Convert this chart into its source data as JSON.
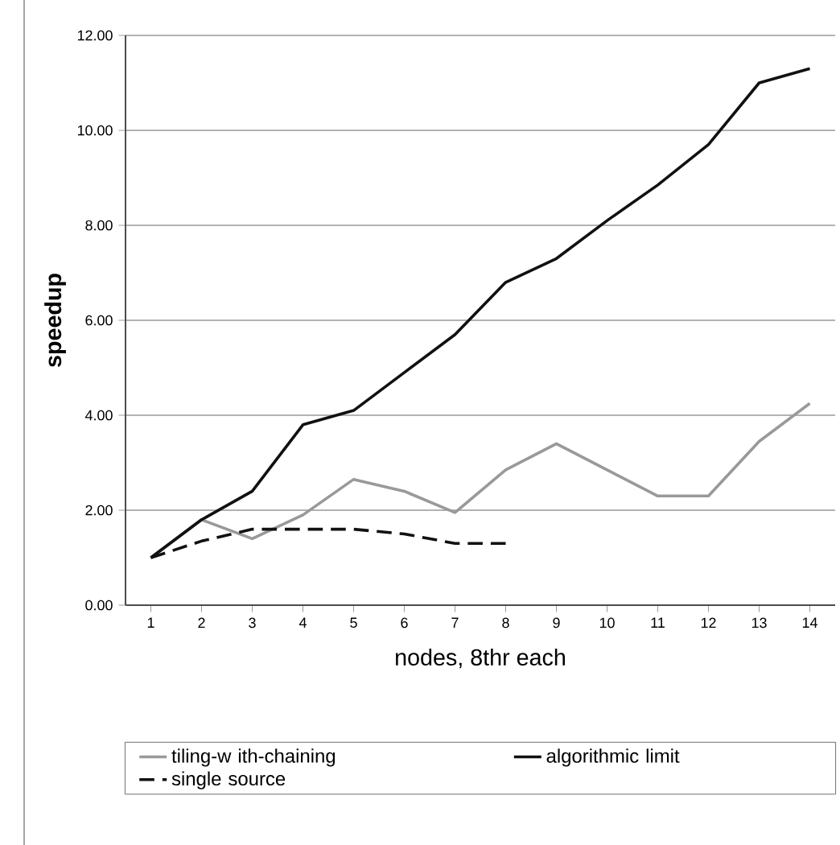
{
  "chart_data": {
    "type": "line",
    "xlabel": "nodes, 8thr each",
    "ylabel": "speedup",
    "categories": [
      "1",
      "2",
      "3",
      "4",
      "5",
      "6",
      "7",
      "8",
      "9",
      "10",
      "11",
      "12",
      "13",
      "14"
    ],
    "series": [
      {
        "name": "tiling-w ith-chaining",
        "color": "#999999",
        "line_style": "solid",
        "values": [
          1.0,
          1.8,
          1.4,
          1.9,
          2.65,
          2.4,
          1.95,
          2.85,
          3.4,
          2.85,
          2.3,
          2.3,
          3.45,
          4.25
        ]
      },
      {
        "name": "algorithmic limit",
        "color": "#111111",
        "line_style": "solid",
        "values": [
          1.0,
          1.8,
          2.4,
          3.8,
          4.1,
          4.9,
          5.7,
          6.8,
          7.3,
          8.1,
          8.85,
          9.7,
          11.0,
          11.3
        ]
      },
      {
        "name": "single source",
        "color": "#111111",
        "line_style": "dashed",
        "values": [
          1.0,
          1.35,
          1.6,
          1.6,
          1.6,
          1.5,
          1.3,
          1.3,
          null,
          null,
          null,
          null,
          null,
          null
        ]
      }
    ],
    "ylim": [
      0,
      12
    ],
    "yticks": [
      {
        "value": 0,
        "label": "0.00"
      },
      {
        "value": 2,
        "label": "2.00"
      },
      {
        "value": 4,
        "label": "4.00"
      },
      {
        "value": 6,
        "label": "6.00"
      },
      {
        "value": 8,
        "label": "8.00"
      },
      {
        "value": 10,
        "label": "10.00"
      },
      {
        "value": 12,
        "label": "12.00"
      }
    ],
    "grid": "y",
    "legend": "bottom",
    "marker": "none"
  }
}
